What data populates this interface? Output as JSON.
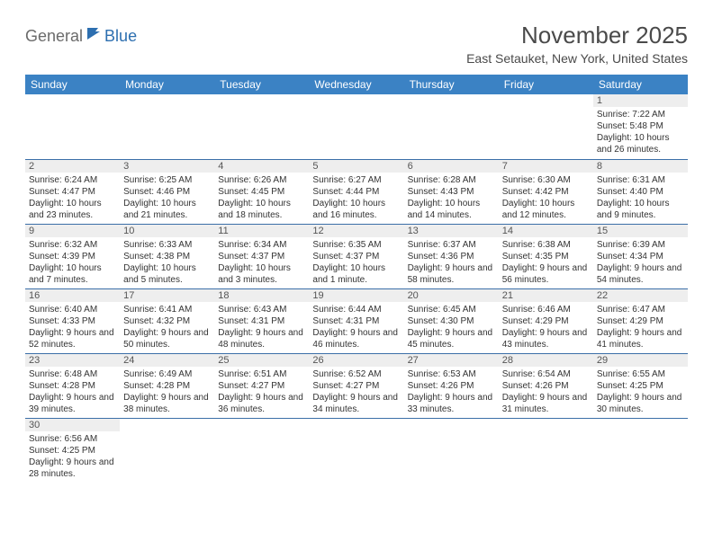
{
  "logo": {
    "text1": "General",
    "text2": "Blue"
  },
  "title": "November 2025",
  "location": "East Setauket, New York, United States",
  "header_bg": "#3b82c4",
  "border_color": "#3b6fa8",
  "daynum_bg": "#eeeeee",
  "text_color": "#333333",
  "weekdays": [
    "Sunday",
    "Monday",
    "Tuesday",
    "Wednesday",
    "Thursday",
    "Friday",
    "Saturday"
  ],
  "weeks": [
    [
      null,
      null,
      null,
      null,
      null,
      null,
      {
        "n": "1",
        "sunrise": "Sunrise: 7:22 AM",
        "sunset": "Sunset: 5:48 PM",
        "daylight": "Daylight: 10 hours and 26 minutes."
      }
    ],
    [
      {
        "n": "2",
        "sunrise": "Sunrise: 6:24 AM",
        "sunset": "Sunset: 4:47 PM",
        "daylight": "Daylight: 10 hours and 23 minutes."
      },
      {
        "n": "3",
        "sunrise": "Sunrise: 6:25 AM",
        "sunset": "Sunset: 4:46 PM",
        "daylight": "Daylight: 10 hours and 21 minutes."
      },
      {
        "n": "4",
        "sunrise": "Sunrise: 6:26 AM",
        "sunset": "Sunset: 4:45 PM",
        "daylight": "Daylight: 10 hours and 18 minutes."
      },
      {
        "n": "5",
        "sunrise": "Sunrise: 6:27 AM",
        "sunset": "Sunset: 4:44 PM",
        "daylight": "Daylight: 10 hours and 16 minutes."
      },
      {
        "n": "6",
        "sunrise": "Sunrise: 6:28 AM",
        "sunset": "Sunset: 4:43 PM",
        "daylight": "Daylight: 10 hours and 14 minutes."
      },
      {
        "n": "7",
        "sunrise": "Sunrise: 6:30 AM",
        "sunset": "Sunset: 4:42 PM",
        "daylight": "Daylight: 10 hours and 12 minutes."
      },
      {
        "n": "8",
        "sunrise": "Sunrise: 6:31 AM",
        "sunset": "Sunset: 4:40 PM",
        "daylight": "Daylight: 10 hours and 9 minutes."
      }
    ],
    [
      {
        "n": "9",
        "sunrise": "Sunrise: 6:32 AM",
        "sunset": "Sunset: 4:39 PM",
        "daylight": "Daylight: 10 hours and 7 minutes."
      },
      {
        "n": "10",
        "sunrise": "Sunrise: 6:33 AM",
        "sunset": "Sunset: 4:38 PM",
        "daylight": "Daylight: 10 hours and 5 minutes."
      },
      {
        "n": "11",
        "sunrise": "Sunrise: 6:34 AM",
        "sunset": "Sunset: 4:37 PM",
        "daylight": "Daylight: 10 hours and 3 minutes."
      },
      {
        "n": "12",
        "sunrise": "Sunrise: 6:35 AM",
        "sunset": "Sunset: 4:37 PM",
        "daylight": "Daylight: 10 hours and 1 minute."
      },
      {
        "n": "13",
        "sunrise": "Sunrise: 6:37 AM",
        "sunset": "Sunset: 4:36 PM",
        "daylight": "Daylight: 9 hours and 58 minutes."
      },
      {
        "n": "14",
        "sunrise": "Sunrise: 6:38 AM",
        "sunset": "Sunset: 4:35 PM",
        "daylight": "Daylight: 9 hours and 56 minutes."
      },
      {
        "n": "15",
        "sunrise": "Sunrise: 6:39 AM",
        "sunset": "Sunset: 4:34 PM",
        "daylight": "Daylight: 9 hours and 54 minutes."
      }
    ],
    [
      {
        "n": "16",
        "sunrise": "Sunrise: 6:40 AM",
        "sunset": "Sunset: 4:33 PM",
        "daylight": "Daylight: 9 hours and 52 minutes."
      },
      {
        "n": "17",
        "sunrise": "Sunrise: 6:41 AM",
        "sunset": "Sunset: 4:32 PM",
        "daylight": "Daylight: 9 hours and 50 minutes."
      },
      {
        "n": "18",
        "sunrise": "Sunrise: 6:43 AM",
        "sunset": "Sunset: 4:31 PM",
        "daylight": "Daylight: 9 hours and 48 minutes."
      },
      {
        "n": "19",
        "sunrise": "Sunrise: 6:44 AM",
        "sunset": "Sunset: 4:31 PM",
        "daylight": "Daylight: 9 hours and 46 minutes."
      },
      {
        "n": "20",
        "sunrise": "Sunrise: 6:45 AM",
        "sunset": "Sunset: 4:30 PM",
        "daylight": "Daylight: 9 hours and 45 minutes."
      },
      {
        "n": "21",
        "sunrise": "Sunrise: 6:46 AM",
        "sunset": "Sunset: 4:29 PM",
        "daylight": "Daylight: 9 hours and 43 minutes."
      },
      {
        "n": "22",
        "sunrise": "Sunrise: 6:47 AM",
        "sunset": "Sunset: 4:29 PM",
        "daylight": "Daylight: 9 hours and 41 minutes."
      }
    ],
    [
      {
        "n": "23",
        "sunrise": "Sunrise: 6:48 AM",
        "sunset": "Sunset: 4:28 PM",
        "daylight": "Daylight: 9 hours and 39 minutes."
      },
      {
        "n": "24",
        "sunrise": "Sunrise: 6:49 AM",
        "sunset": "Sunset: 4:28 PM",
        "daylight": "Daylight: 9 hours and 38 minutes."
      },
      {
        "n": "25",
        "sunrise": "Sunrise: 6:51 AM",
        "sunset": "Sunset: 4:27 PM",
        "daylight": "Daylight: 9 hours and 36 minutes."
      },
      {
        "n": "26",
        "sunrise": "Sunrise: 6:52 AM",
        "sunset": "Sunset: 4:27 PM",
        "daylight": "Daylight: 9 hours and 34 minutes."
      },
      {
        "n": "27",
        "sunrise": "Sunrise: 6:53 AM",
        "sunset": "Sunset: 4:26 PM",
        "daylight": "Daylight: 9 hours and 33 minutes."
      },
      {
        "n": "28",
        "sunrise": "Sunrise: 6:54 AM",
        "sunset": "Sunset: 4:26 PM",
        "daylight": "Daylight: 9 hours and 31 minutes."
      },
      {
        "n": "29",
        "sunrise": "Sunrise: 6:55 AM",
        "sunset": "Sunset: 4:25 PM",
        "daylight": "Daylight: 9 hours and 30 minutes."
      }
    ],
    [
      {
        "n": "30",
        "sunrise": "Sunrise: 6:56 AM",
        "sunset": "Sunset: 4:25 PM",
        "daylight": "Daylight: 9 hours and 28 minutes."
      },
      null,
      null,
      null,
      null,
      null,
      null
    ]
  ]
}
